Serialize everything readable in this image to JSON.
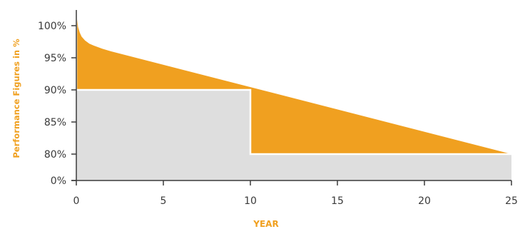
{
  "chart_data": {
    "type": "area",
    "xlabel": "YEAR",
    "ylabel": "Performance Figures in %",
    "xlim": [
      0,
      25
    ],
    "x_ticks": [
      "0",
      "5",
      "10",
      "15",
      "20",
      "25"
    ],
    "y_ticks": [
      "0%",
      "80%",
      "85%",
      "90%",
      "95%",
      "100%"
    ],
    "y_scale": "broken axis: 0% then 80% to 100%",
    "grid": false,
    "legend": "none",
    "series": [
      {
        "role": "linear-guarantee",
        "x": [
          0.05,
          0.1,
          0.2,
          0.3,
          0.5,
          0.75,
          1,
          1.5,
          2,
          25
        ],
        "y": [
          101.0,
          99.8,
          98.9,
          98.3,
          97.7,
          97.2,
          96.9,
          96.4,
          96.0,
          80.0
        ],
        "color": "#f0a020"
      },
      {
        "role": "standard-step-guarantee",
        "x": [
          0,
          10,
          10,
          25
        ],
        "y": [
          90,
          90,
          80,
          80
        ],
        "color": "#dedede"
      }
    ],
    "colors": {
      "accent": "#f0a020",
      "step_fill": "#dedede",
      "axis": "#3a3a3a"
    }
  }
}
